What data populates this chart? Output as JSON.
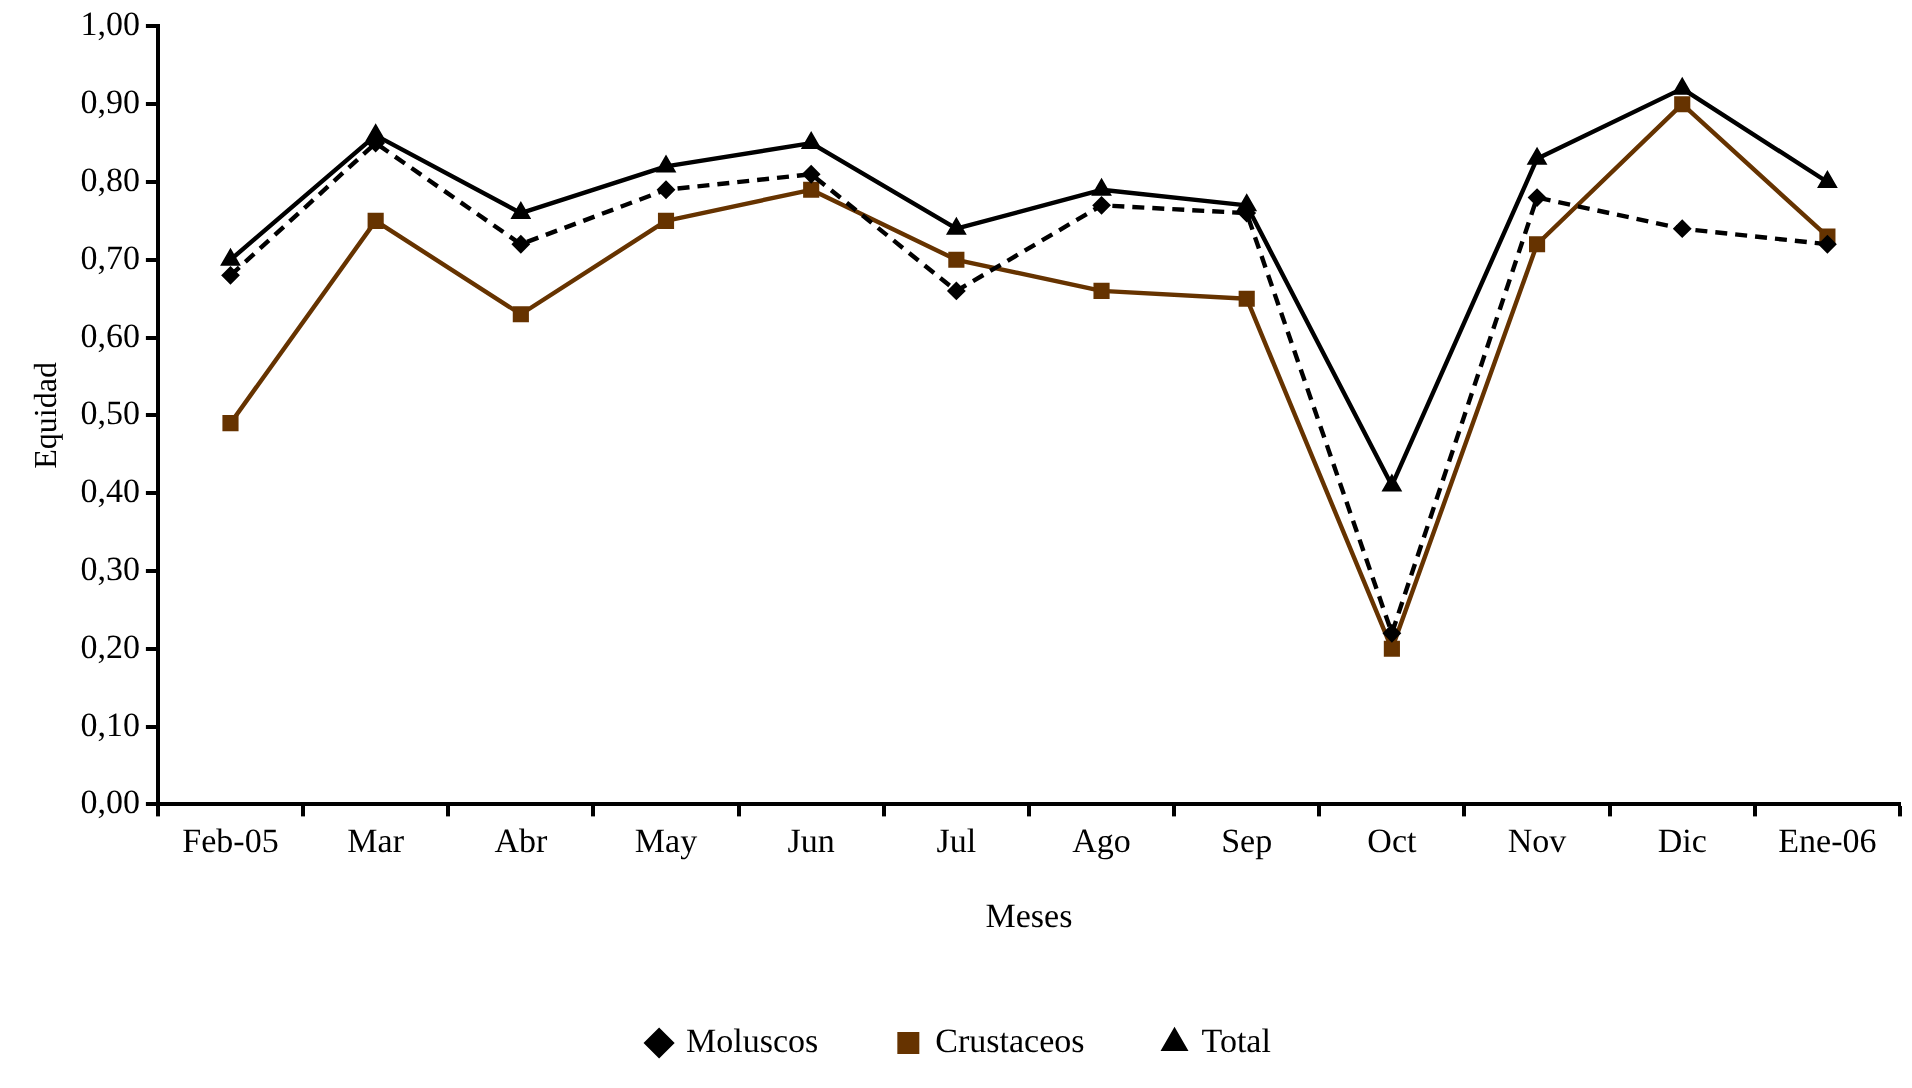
{
  "chart_data": {
    "type": "line",
    "xlabel": "Meses",
    "ylabel": "Equidad",
    "categories": [
      "Feb-05",
      "Mar",
      "Abr",
      "May",
      "Jun",
      "Jul",
      "Ago",
      "Sep",
      "Oct",
      "Nov",
      "Dic",
      "Ene-06"
    ],
    "series": [
      {
        "name": "Moluscos",
        "color": "#000000",
        "marker": "diamond",
        "line_style": "dashed",
        "values": [
          0.68,
          0.85,
          0.72,
          0.79,
          0.81,
          0.66,
          0.77,
          0.76,
          0.22,
          0.78,
          0.74,
          0.72
        ]
      },
      {
        "name": "Crustaceos",
        "color": "#663300",
        "marker": "square",
        "line_style": "solid",
        "values": [
          0.49,
          0.75,
          0.63,
          0.75,
          0.79,
          0.7,
          0.66,
          0.65,
          0.2,
          0.72,
          0.9,
          0.73
        ]
      },
      {
        "name": "Total",
        "color": "#000000",
        "marker": "triangle",
        "line_style": "solid",
        "values": [
          0.7,
          0.86,
          0.76,
          0.82,
          0.85,
          0.74,
          0.79,
          0.77,
          0.41,
          0.83,
          0.92,
          0.8
        ]
      }
    ],
    "ylim": [
      0,
      1
    ],
    "yticks": [
      {
        "value": 0,
        "label": "0,00"
      },
      {
        "value": 0.1,
        "label": "0,10"
      },
      {
        "value": 0.2,
        "label": "0,20"
      },
      {
        "value": 0.3,
        "label": "0,30"
      },
      {
        "value": 0.4,
        "label": "0,40"
      },
      {
        "value": 0.5,
        "label": "0,50"
      },
      {
        "value": 0.6,
        "label": "0,60"
      },
      {
        "value": 0.7,
        "label": "0,70"
      },
      {
        "value": 0.8,
        "label": "0,80"
      },
      {
        "value": 0.9,
        "label": "0,90"
      },
      {
        "value": 1,
        "label": "1,00"
      }
    ],
    "grid": false,
    "legend": "bottom"
  }
}
